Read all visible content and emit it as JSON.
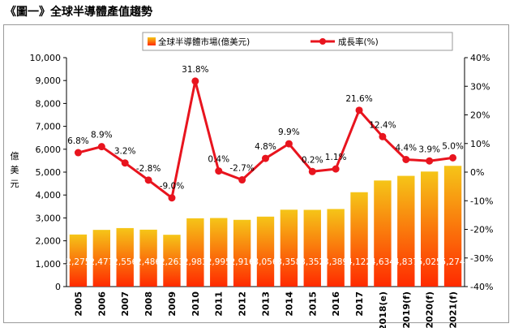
{
  "title": "《圖一》全球半導體產值趨勢",
  "chart_data": {
    "type": "bar+line",
    "categories": [
      "2005",
      "2006",
      "2007",
      "2008",
      "2009",
      "2010",
      "2011",
      "2012",
      "2013",
      "2014",
      "2015",
      "2016",
      "2017",
      "2018(e)",
      "2019(f)",
      "2020(f)",
      "2021(f)"
    ],
    "series": [
      {
        "name": "全球半導體市場(億美元)",
        "type": "bar",
        "axis": "left",
        "values": [
          2275,
          2477,
          2556,
          2486,
          2263,
          2983,
          2995,
          2916,
          3056,
          3358,
          3352,
          3389,
          4122,
          4634,
          4837,
          5025,
          5274
        ],
        "labels": [
          "2,275",
          "2,477",
          "2,556",
          "2,486",
          "2,263",
          "2,983",
          "2,995",
          "2,916",
          "3,056",
          "3,358",
          "3,352",
          "3,389",
          "4,122",
          "4,634",
          "4,837",
          "5,025",
          "5,274"
        ]
      },
      {
        "name": "成長率(%)",
        "type": "line",
        "axis": "right",
        "values": [
          6.8,
          8.9,
          3.2,
          -2.8,
          -9.0,
          31.8,
          0.4,
          -2.7,
          4.8,
          9.9,
          0.2,
          1.1,
          21.6,
          12.4,
          4.4,
          3.9,
          5.0
        ],
        "labels": [
          "6.8%",
          "8.9%",
          "3.2%",
          "-2.8%",
          "-9.0%",
          "31.8%",
          "0.4%",
          "-2.7%",
          "4.8%",
          "9.9%",
          "0.2%",
          "1.1%",
          "21.6%",
          "12.4%",
          "4.4%",
          "3.9%",
          "5.0%"
        ]
      }
    ],
    "ylabel": "億美元",
    "ylim": [
      0,
      10000
    ],
    "yticks": [
      "0",
      "1,000",
      "2,000",
      "3,000",
      "4,000",
      "5,000",
      "6,000",
      "7,000",
      "8,000",
      "9,000",
      "10,000"
    ],
    "y2lim": [
      -40,
      40
    ],
    "y2ticks": [
      "-40%",
      "-30%",
      "-20%",
      "-10%",
      "0%",
      "10%",
      "20%",
      "30%",
      "40%"
    ],
    "legend": "top",
    "grid": false
  },
  "colors": {
    "bar_top": "#f5c518",
    "bar_bottom": "#ff2a00",
    "line": "#e8141e"
  }
}
